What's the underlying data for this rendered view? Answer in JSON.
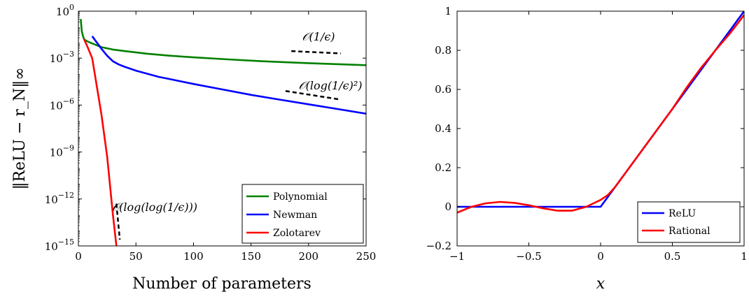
{
  "chart_data": [
    {
      "type": "line",
      "yscale": "log",
      "xlabel": "Number of parameters",
      "ylabel": "‖ReLU − r_N‖∞",
      "xlim": [
        0,
        250
      ],
      "ylim_exp": [
        -15,
        0
      ],
      "x_ticks": [
        "0",
        "50",
        "100",
        "150",
        "200",
        "250"
      ],
      "y_ticks": [
        {
          "base": "10",
          "exp": "0",
          "value_exp": 0
        },
        {
          "base": "10",
          "exp": "−3",
          "value_exp": -3
        },
        {
          "base": "10",
          "exp": "−6",
          "value_exp": -6
        },
        {
          "base": "10",
          "exp": "−9",
          "value_exp": -9
        },
        {
          "base": "10",
          "exp": "−12",
          "value_exp": -12
        },
        {
          "base": "10",
          "exp": "−15",
          "value_exp": -15
        }
      ],
      "legend": {
        "placement": "bottom-right"
      },
      "series": [
        {
          "name": "Polynomial",
          "color": "#008000",
          "x": [
            2,
            3,
            4,
            5,
            7,
            10,
            15,
            20,
            30,
            40,
            60,
            80,
            100,
            130,
            160,
            200,
            250
          ],
          "log10_y": [
            -0.5,
            -1.3,
            -1.6,
            -1.8,
            -1.9,
            -2.0,
            -2.15,
            -2.3,
            -2.45,
            -2.55,
            -2.72,
            -2.85,
            -2.95,
            -3.08,
            -3.2,
            -3.32,
            -3.45
          ]
        },
        {
          "name": "Newman",
          "color": "#0000ff",
          "x": [
            12,
            16,
            20,
            25,
            30,
            35,
            40,
            50,
            60,
            70,
            80,
            100,
            125,
            150,
            175,
            200,
            225,
            250
          ],
          "log10_y": [
            -1.6,
            -2.0,
            -2.4,
            -2.85,
            -3.2,
            -3.4,
            -3.55,
            -3.8,
            -4.0,
            -4.2,
            -4.35,
            -4.65,
            -5.0,
            -5.35,
            -5.65,
            -5.95,
            -6.25,
            -6.55
          ]
        },
        {
          "name": "Zolotarev",
          "color": "#ff0000",
          "x": [
            5,
            8,
            12,
            16,
            20,
            25,
            30,
            33
          ],
          "log10_y": [
            -1.8,
            -2.3,
            -3.0,
            -4.8,
            -6.6,
            -9.3,
            -13.0,
            -15.0
          ]
        }
      ],
      "annotations": [
        {
          "text": "𝒪(1/ϵ)",
          "slope_x": [
            185,
            228
          ],
          "slope_log10_y": [
            -2.55,
            -2.7
          ]
        },
        {
          "text": "𝒪(log(1/ϵ)²)",
          "slope_x": [
            180,
            228
          ],
          "slope_log10_y": [
            -5.1,
            -5.65
          ]
        },
        {
          "text": "𝒪(log(log(1/ϵ)))",
          "slope_x": [
            33,
            36
          ],
          "slope_log10_y": [
            -12.3,
            -14.6
          ]
        }
      ]
    },
    {
      "type": "line",
      "xlabel": "x",
      "ylabel": "",
      "xlim": [
        -1,
        1
      ],
      "ylim": [
        -0.2,
        1
      ],
      "x_ticks": [
        {
          "label": "−1",
          "value": -1
        },
        {
          "label": "−0.5",
          "value": -0.5
        },
        {
          "label": "0",
          "value": 0
        },
        {
          "label": "0.5",
          "value": 0.5
        },
        {
          "label": "1",
          "value": 1
        }
      ],
      "y_ticks": [
        {
          "label": "−0.2",
          "value": -0.2
        },
        {
          "label": "0",
          "value": 0
        },
        {
          "label": "0.2",
          "value": 0.2
        },
        {
          "label": "0.4",
          "value": 0.4
        },
        {
          "label": "0.6",
          "value": 0.6
        },
        {
          "label": "0.8",
          "value": 0.8
        },
        {
          "label": "1",
          "value": 1
        }
      ],
      "legend": {
        "placement": "bottom-right"
      },
      "series": [
        {
          "name": "ReLU",
          "color": "#0000ff",
          "x": [
            -1,
            0,
            1
          ],
          "y": [
            0,
            0,
            1
          ]
        },
        {
          "name": "Rational",
          "color": "#ff0000",
          "x": [
            -1,
            -0.9,
            -0.8,
            -0.7,
            -0.6,
            -0.5,
            -0.4,
            -0.3,
            -0.2,
            -0.1,
            0,
            0.05,
            0.1,
            0.2,
            0.3,
            0.4,
            0.5,
            0.6,
            0.7,
            0.8,
            0.9,
            1
          ],
          "y": [
            -0.03,
            0.0,
            0.018,
            0.025,
            0.02,
            0.008,
            -0.008,
            -0.02,
            -0.02,
            0.0,
            0.035,
            0.06,
            0.1,
            0.2,
            0.3,
            0.4,
            0.5,
            0.61,
            0.71,
            0.8,
            0.885,
            0.98
          ]
        }
      ]
    }
  ]
}
